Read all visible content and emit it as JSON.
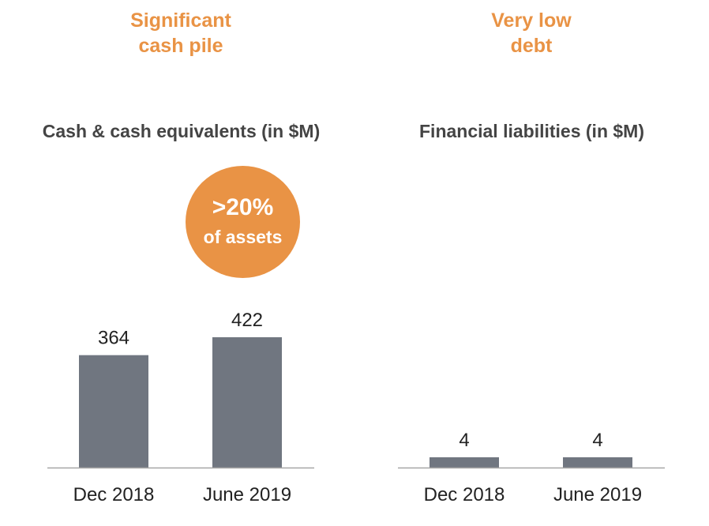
{
  "headlines": {
    "left": [
      "Significant",
      "cash pile"
    ],
    "right": [
      "Very low",
      "debt"
    ]
  },
  "badge": {
    "line1": ">20%",
    "line2": "of assets"
  },
  "colors": {
    "accent": "#e99345",
    "bar": "#707680",
    "axis": "#a6a6a6",
    "text": "#444444"
  },
  "chart_data": [
    {
      "type": "bar",
      "title": "Cash & cash equivalents (in $M)",
      "categories": [
        "Dec 2018",
        "June 2019"
      ],
      "values": [
        364,
        422
      ],
      "data_labels": [
        "364",
        "422"
      ],
      "xlabel": "",
      "ylabel": "",
      "ylim": [
        0,
        450
      ]
    },
    {
      "type": "bar",
      "title": "Financial liabilities (in $M)",
      "categories": [
        "Dec 2018",
        "June 2019"
      ],
      "values": [
        4,
        4
      ],
      "data_labels": [
        "4",
        "4"
      ],
      "xlabel": "",
      "ylabel": "",
      "ylim": [
        0,
        450
      ]
    }
  ]
}
